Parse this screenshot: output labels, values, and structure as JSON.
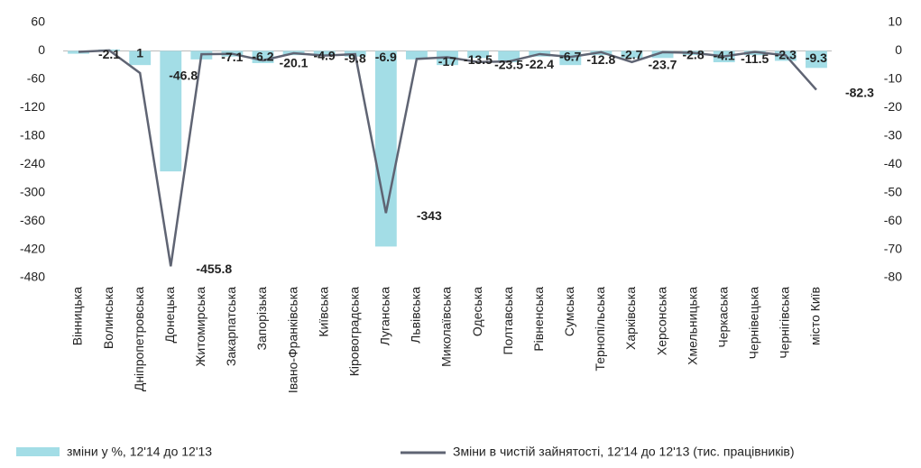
{
  "chart_data": {
    "type": "bar_line",
    "categories": [
      "Вінницька",
      "Волинська",
      "Дніпропетровська",
      "Донецька",
      "Житомирська",
      "Закарпатська",
      "Запорізька",
      "Івано-Франківська",
      "Київська",
      "Кіровоградська",
      "Луганська",
      "Львівська",
      "Миколаївська",
      "Одеська",
      "Полтавська",
      "Рівненська",
      "Сумська",
      "Тернопільська",
      "Харківська",
      "Херсонська",
      "Хмельницька",
      "Черкаська",
      "Чернівецька",
      "Чернігівська",
      "місто Київ"
    ],
    "series": [
      {
        "name": "зміни у %, 12'14 до 12'13",
        "type": "bar",
        "axis": "y2",
        "color": "#a3dde6",
        "values": [
          -1,
          0.5,
          -5,
          -42.5,
          -3,
          -2,
          -4.3,
          -1.5,
          -1.5,
          -2,
          -69,
          -3,
          -5,
          -2.5,
          -4,
          -2,
          -5,
          -1.5,
          -2.5,
          -2.5,
          -1.5,
          -4,
          -1.5,
          -3.5,
          -6
        ]
      },
      {
        "name": "Зміни в чистій зайнятості, 12'14 до 12'13 (тис. працівників)",
        "type": "line",
        "axis": "y",
        "color": "#5f6473",
        "values": [
          -2.1,
          1.0,
          -46.8,
          -455.8,
          -7.1,
          -6.2,
          -20.1,
          -4.9,
          -9.8,
          -6.9,
          -343.0,
          -17.0,
          -13.5,
          -23.5,
          -22.4,
          -6.7,
          -12.8,
          -2.7,
          -23.7,
          -2.8,
          -4.1,
          -11.5,
          -2.3,
          -9.3,
          -82.3
        ]
      }
    ],
    "ylim": [
      -480,
      60
    ],
    "yticks": [
      60,
      0,
      -60,
      -120,
      -180,
      -240,
      -300,
      -360,
      -420,
      -480
    ],
    "y2lim": [
      -80,
      10
    ],
    "y2ticks": [
      10,
      0,
      -10,
      -20,
      -30,
      -40,
      -50,
      -60,
      -70,
      -80
    ]
  }
}
